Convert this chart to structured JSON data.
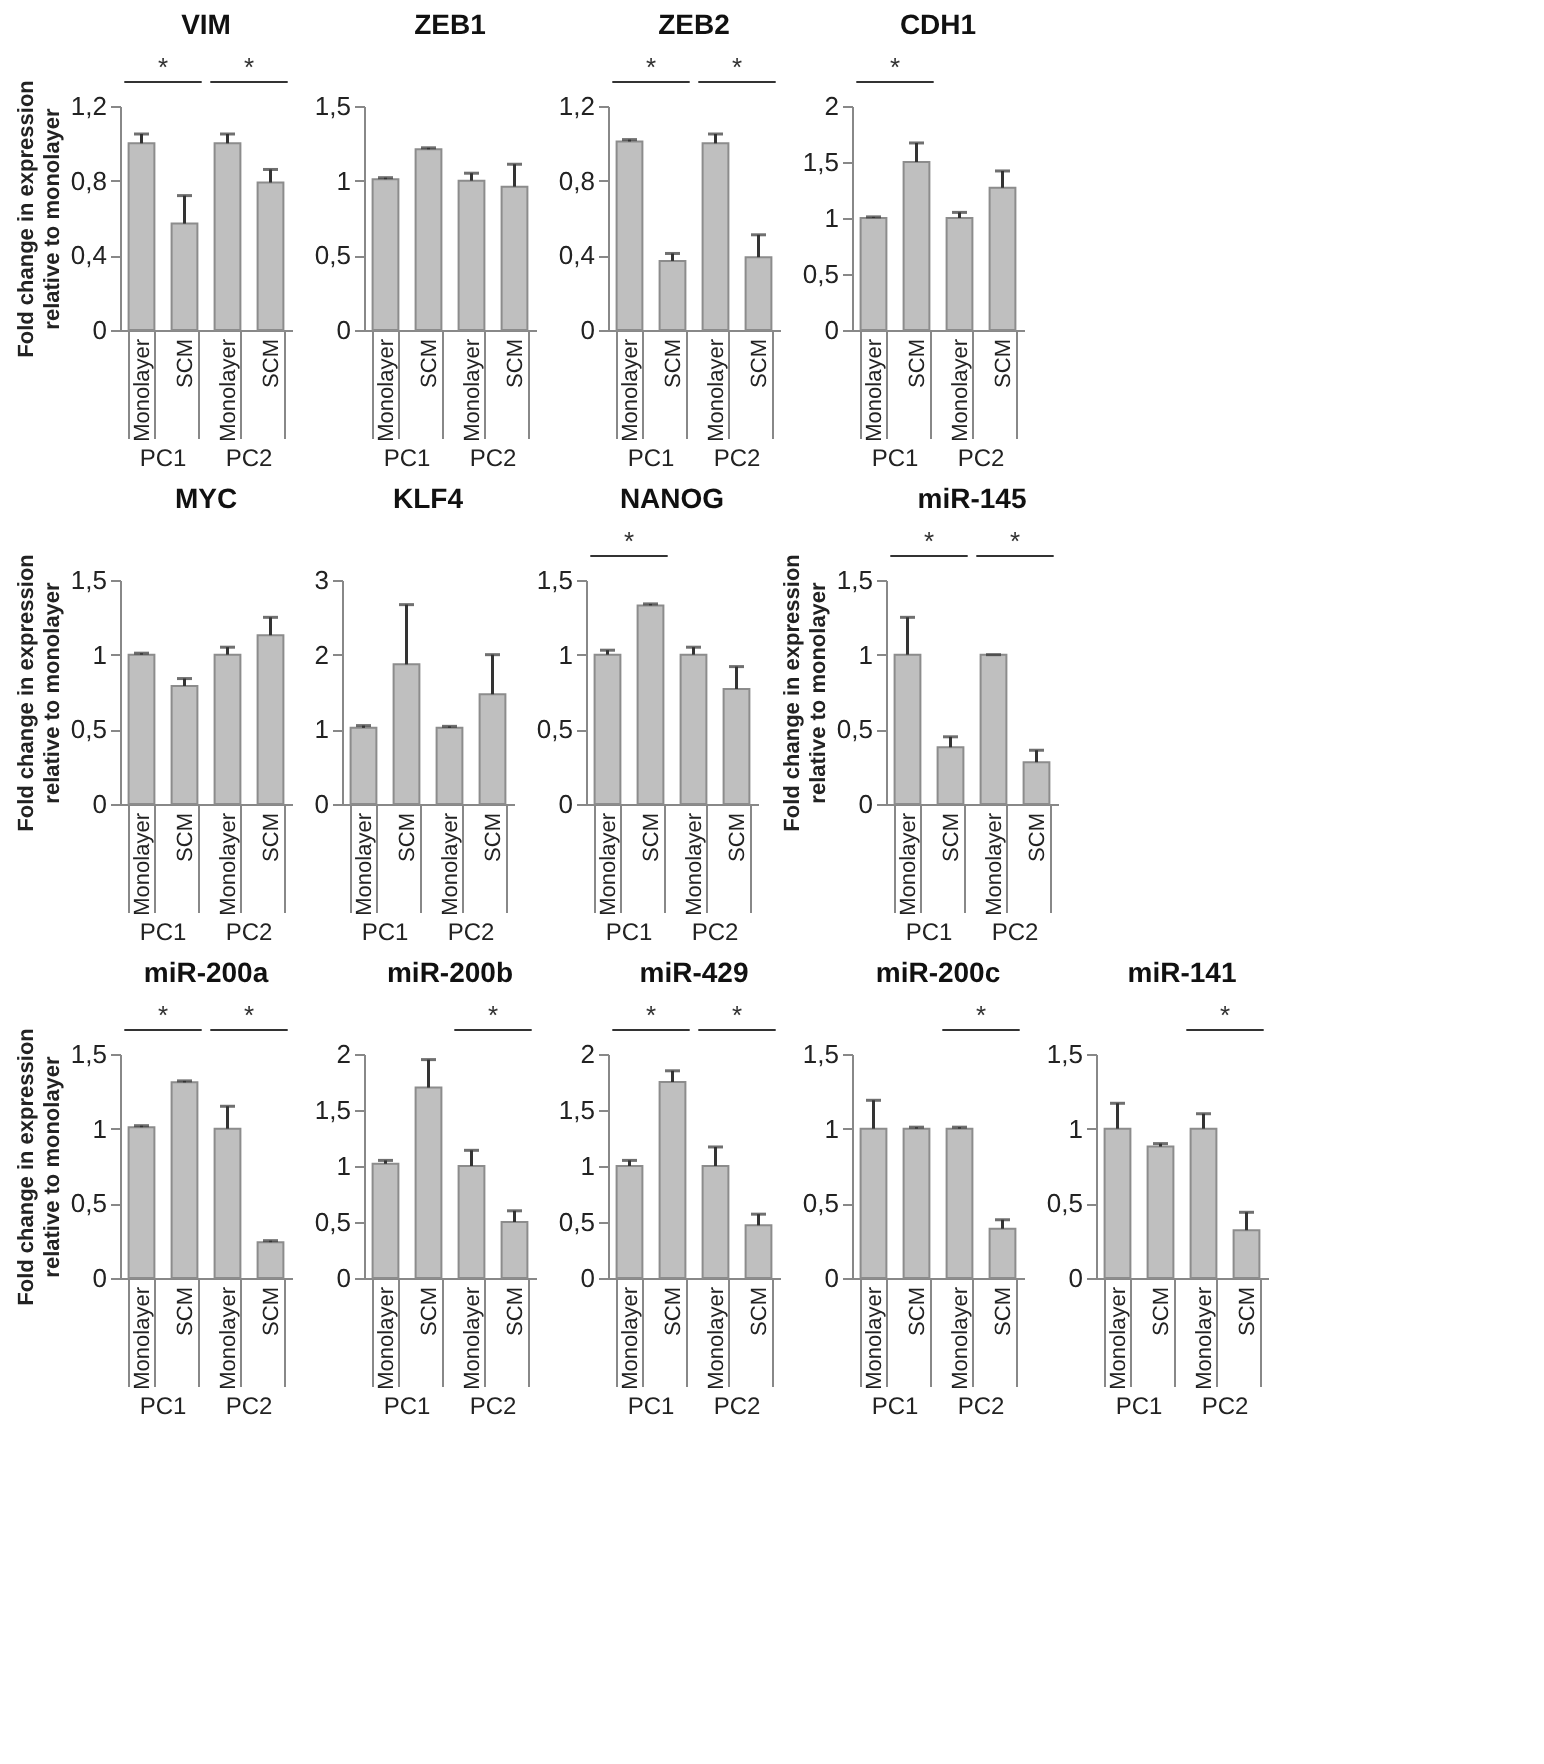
{
  "chart_data": [
    {
      "type": "bar",
      "title": "VIM",
      "ylabel": "Fold change in expression relative to monolayer",
      "categories": [
        "Monolayer",
        "SCM",
        "Monolayer",
        "SCM"
      ],
      "values": [
        1.0,
        0.57,
        1.0,
        0.79
      ],
      "errors": [
        [
          1.0,
          1.05
        ],
        [
          0.57,
          0.72
        ],
        [
          1.0,
          1.05
        ],
        [
          0.79,
          0.86
        ]
      ],
      "color": "#bfbfbf",
      "ylim": [
        0,
        1.2
      ],
      "yticks": [
        0,
        {
          "value": 0.4,
          "label": "0,4"
        },
        {
          "value": 0.8,
          "label": "0,8"
        },
        {
          "value": 1.2,
          "label": "1,2"
        }
      ],
      "annotations": [
        "PC1",
        "*",
        "PC2",
        "*"
      ]
    },
    {
      "type": "bar",
      "title": "ZEB1",
      "categories": [
        "Monolayer",
        "SCM",
        "Monolayer",
        "SCM"
      ],
      "values": [
        1.01,
        1.21,
        1.0,
        0.96
      ],
      "errors": [
        [
          1.01,
          1.02
        ],
        [
          1.21,
          1.22
        ],
        [
          1.0,
          1.05
        ],
        [
          0.96,
          1.11
        ]
      ],
      "color": "#bfbfbf",
      "ylim": [
        0,
        1.5
      ],
      "yticks": [
        0,
        {
          "value": 0.5,
          "label": "0,5"
        },
        1,
        {
          "value": 1.5,
          "label": "1,5"
        }
      ],
      "annotations": [
        "PC1",
        "PC2"
      ]
    },
    {
      "type": "bar",
      "title": "ZEB2",
      "categories": [
        "Monolayer",
        "SCM",
        "Monolayer",
        "SCM"
      ],
      "values": [
        1.01,
        0.37,
        1.0,
        0.39
      ],
      "errors": [
        [
          1.01,
          1.02
        ],
        [
          0.37,
          0.41
        ],
        [
          1.0,
          1.05
        ],
        [
          0.39,
          0.51
        ]
      ],
      "color": "#bfbfbf",
      "ylim": [
        0,
        1.2
      ],
      "yticks": [
        0,
        {
          "value": 0.4,
          "label": "0,4"
        },
        {
          "value": 0.8,
          "label": "0,8"
        },
        {
          "value": 1.2,
          "label": "1,2"
        }
      ],
      "annotations": [
        "PC1",
        "*",
        "PC2",
        "*"
      ]
    },
    {
      "type": "bar",
      "title": "CDH1",
      "categories": [
        "Monolayer",
        "SCM",
        "Monolayer",
        "SCM"
      ],
      "values": [
        1.0,
        1.5,
        1.0,
        1.27
      ],
      "errors": [
        [
          1.0,
          1.01
        ],
        [
          1.5,
          1.67
        ],
        [
          1.0,
          1.05
        ],
        [
          1.27,
          1.42
        ]
      ],
      "color": "#bfbfbf",
      "ylim": [
        0,
        2
      ],
      "yticks": [
        0,
        {
          "value": 0.5,
          "label": "0,5"
        },
        1,
        {
          "value": 1.5,
          "label": "1,5"
        },
        2
      ],
      "annotations": [
        "PC1",
        "*",
        "PC2"
      ]
    },
    {
      "type": "bar",
      "title": "MYC",
      "ylabel": "Fold change in expression relative to monolayer",
      "categories": [
        "Monolayer",
        "SCM",
        "Monolayer",
        "SCM"
      ],
      "values": [
        1.0,
        0.79,
        1.0,
        1.13
      ],
      "errors": [
        [
          1.0,
          1.01
        ],
        [
          0.79,
          0.84
        ],
        [
          1.0,
          1.05
        ],
        [
          1.13,
          1.25
        ]
      ],
      "color": "#bfbfbf",
      "ylim": [
        0,
        1.5
      ],
      "yticks": [
        0,
        {
          "value": 0.5,
          "label": "0,5"
        },
        1,
        {
          "value": 1.5,
          "label": "1,5"
        }
      ],
      "annotations": [
        "PC1",
        "PC2"
      ]
    },
    {
      "type": "bar",
      "title": "KLF4",
      "categories": [
        "Monolayer",
        "SCM",
        "Monolayer",
        "SCM"
      ],
      "values": [
        1.02,
        1.87,
        1.02,
        1.47
      ],
      "errors": [
        [
          1.02,
          1.05
        ],
        [
          1.87,
          2.67
        ],
        [
          1.02,
          1.04
        ],
        [
          1.47,
          2.0
        ]
      ],
      "color": "#bfbfbf",
      "ylim": [
        0,
        3
      ],
      "yticks": [
        0,
        1,
        2,
        3
      ],
      "annotations": [
        "PC1",
        "PC2"
      ]
    },
    {
      "type": "bar",
      "title": "NANOG",
      "categories": [
        "Monolayer",
        "SCM",
        "Monolayer",
        "SCM"
      ],
      "values": [
        1.0,
        1.33,
        1.0,
        0.77
      ],
      "errors": [
        [
          1.0,
          1.03
        ],
        [
          1.33,
          1.34
        ],
        [
          1.0,
          1.05
        ],
        [
          0.77,
          0.92
        ]
      ],
      "color": "#bfbfbf",
      "ylim": [
        0,
        1.5
      ],
      "yticks": [
        0,
        {
          "value": 0.5,
          "label": "0,5"
        },
        1,
        {
          "value": 1.5,
          "label": "1,5"
        }
      ],
      "annotations": [
        "PC1",
        "*",
        "PC2"
      ]
    },
    {
      "type": "bar",
      "title": "miR-145",
      "ylabel": "Fold change in expression relative to monolayer",
      "categories": [
        "Monolayer",
        "SCM",
        "Monolayer",
        "SCM"
      ],
      "values": [
        1.0,
        0.38,
        1.0,
        0.28
      ],
      "errors": [
        [
          1.0,
          1.25
        ],
        [
          0.38,
          0.45
        ],
        [
          1.0,
          1.0
        ],
        [
          0.28,
          0.36
        ]
      ],
      "color": "#bfbfbf",
      "ylim": [
        0,
        1.5
      ],
      "yticks": [
        0,
        {
          "value": 0.5,
          "label": "0,5"
        },
        1,
        {
          "value": 1.5,
          "label": "1,5"
        }
      ],
      "annotations": [
        "PC1",
        "*",
        "PC2",
        "*"
      ]
    },
    {
      "type": "bar",
      "title": "miR-200a",
      "ylabel": "Fold change in expression relative to monolayer",
      "categories": [
        "Monolayer",
        "SCM",
        "Monolayer",
        "SCM"
      ],
      "values": [
        1.01,
        1.31,
        1.0,
        0.24
      ],
      "errors": [
        [
          1.01,
          1.02
        ],
        [
          1.31,
          1.32
        ],
        [
          1.0,
          1.15
        ],
        [
          0.24,
          0.25
        ]
      ],
      "color": "#bfbfbf",
      "ylim": [
        0,
        1.5
      ],
      "yticks": [
        0,
        {
          "value": 0.5,
          "label": "0,5"
        },
        1,
        {
          "value": 1.5,
          "label": "1,5"
        }
      ],
      "annotations": [
        "PC1",
        "*",
        "PC2",
        "*"
      ]
    },
    {
      "type": "bar",
      "title": "miR-200b",
      "categories": [
        "Monolayer",
        "SCM",
        "Monolayer",
        "SCM"
      ],
      "values": [
        1.02,
        1.7,
        1.0,
        0.5
      ],
      "errors": [
        [
          1.02,
          1.05
        ],
        [
          1.7,
          1.95
        ],
        [
          1.0,
          1.14
        ],
        [
          0.5,
          0.6
        ]
      ],
      "color": "#bfbfbf",
      "ylim": [
        0,
        2
      ],
      "yticks": [
        0,
        {
          "value": 0.5,
          "label": "0,5"
        },
        1,
        {
          "value": 1.5,
          "label": "1,5"
        },
        2
      ],
      "annotations": [
        "PC1",
        "PC2",
        "*"
      ]
    },
    {
      "type": "bar",
      "title": "miR-429",
      "categories": [
        "Monolayer",
        "SCM",
        "Monolayer",
        "SCM"
      ],
      "values": [
        1.0,
        1.75,
        1.0,
        0.47
      ],
      "errors": [
        [
          1.0,
          1.05
        ],
        [
          1.75,
          1.85
        ],
        [
          1.0,
          1.17
        ],
        [
          0.47,
          0.57
        ]
      ],
      "color": "#bfbfbf",
      "ylim": [
        0,
        2
      ],
      "yticks": [
        0,
        {
          "value": 0.5,
          "label": "0,5"
        },
        1,
        {
          "value": 1.5,
          "label": "1,5"
        },
        2
      ],
      "annotations": [
        "PC1",
        "*",
        "PC2",
        "*"
      ]
    },
    {
      "type": "bar",
      "title": "miR-200c",
      "categories": [
        "Monolayer",
        "SCM",
        "Monolayer",
        "SCM"
      ],
      "values": [
        1.0,
        1.0,
        1.0,
        0.33
      ],
      "errors": [
        [
          1.0,
          1.19
        ],
        [
          1.0,
          1.01
        ],
        [
          1.0,
          1.01
        ],
        [
          0.33,
          0.39
        ]
      ],
      "color": "#bfbfbf",
      "ylim": [
        0,
        1.5
      ],
      "yticks": [
        0,
        {
          "value": 0.5,
          "label": "0,5"
        },
        1,
        {
          "value": 1.5,
          "label": "1,5"
        }
      ],
      "annotations": [
        "PC1",
        "PC2",
        "*"
      ]
    },
    {
      "type": "bar",
      "title": "miR-141",
      "categories": [
        "Monolayer",
        "SCM",
        "Monolayer",
        "SCM"
      ],
      "values": [
        1.0,
        0.88,
        1.0,
        0.32
      ],
      "errors": [
        [
          1.0,
          1.17
        ],
        [
          0.88,
          0.9
        ],
        [
          1.0,
          1.1
        ],
        [
          0.32,
          0.44
        ]
      ],
      "color": "#bfbfbf",
      "ylim": [
        0,
        1.5
      ],
      "yticks": [
        0,
        {
          "value": 0.5,
          "label": "0,5"
        },
        1,
        {
          "value": 1.5,
          "label": "1,5"
        }
      ],
      "annotations": [
        "PC1",
        "PC2",
        "*"
      ]
    }
  ]
}
